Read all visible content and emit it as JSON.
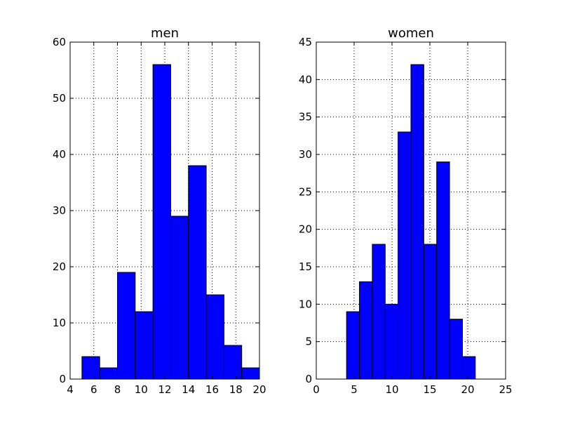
{
  "chart_data": [
    {
      "type": "bar",
      "title": "men",
      "xlim": [
        4,
        20
      ],
      "ylim": [
        0,
        60
      ],
      "xticks": [
        4,
        6,
        8,
        10,
        12,
        14,
        16,
        18,
        20
      ],
      "yticks": [
        0,
        10,
        20,
        30,
        40,
        50,
        60
      ],
      "grid": true,
      "bin_edges": [
        5,
        6.5,
        8,
        9.5,
        11,
        12.5,
        14,
        15.5,
        17,
        18.5,
        20
      ],
      "values": [
        4,
        2,
        19,
        12,
        56,
        29,
        38,
        15,
        6,
        2
      ],
      "bar_color": "#0000ff"
    },
    {
      "type": "bar",
      "title": "women",
      "xlim": [
        0,
        25
      ],
      "ylim": [
        0,
        45
      ],
      "xticks": [
        0,
        5,
        10,
        15,
        20,
        25
      ],
      "yticks": [
        0,
        5,
        10,
        15,
        20,
        25,
        30,
        35,
        40,
        45
      ],
      "grid": true,
      "bin_edges": [
        4,
        5.7,
        7.4,
        9.1,
        10.8,
        12.5,
        14.2,
        15.9,
        17.6,
        19.3,
        21
      ],
      "values": [
        9,
        13,
        18,
        10,
        33,
        42,
        18,
        29,
        8,
        3
      ],
      "bar_color": "#0000ff"
    }
  ]
}
